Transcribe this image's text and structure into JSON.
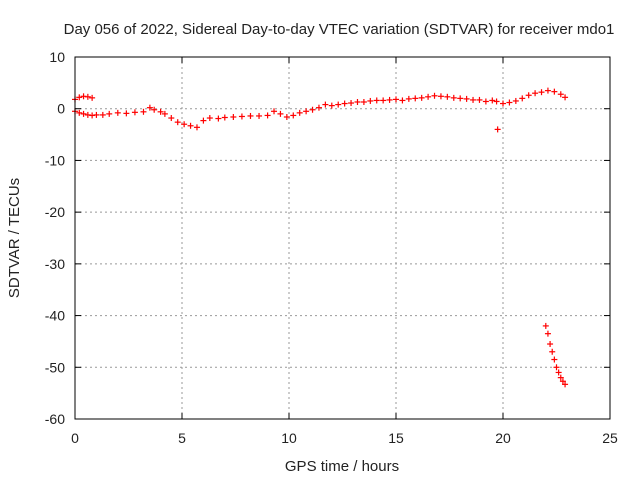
{
  "chart_data": {
    "type": "scatter",
    "title": "Day 056 of 2022, Sidereal Day-to-day VTEC variation (SDTVAR) for receiver mdo1",
    "xlabel": "GPS time / hours",
    "ylabel": "SDTVAR / TECUs",
    "xlim": [
      0,
      25
    ],
    "ylim": [
      -60,
      10
    ],
    "xticks": [
      0,
      5,
      10,
      15,
      20,
      25
    ],
    "yticks": [
      10,
      0,
      -10,
      -20,
      -30,
      -40,
      -50,
      -60
    ],
    "grid": true,
    "marker": "+",
    "color": "#ff0000",
    "series": [
      {
        "name": "mdo1",
        "x": [
          0.0,
          0.2,
          0.4,
          0.6,
          0.8,
          1.0,
          1.3,
          1.6,
          2.0,
          2.4,
          2.8,
          3.2,
          3.5,
          3.7,
          4.0,
          4.2,
          4.5,
          4.8,
          5.1,
          5.4,
          5.7,
          6.0,
          6.3,
          6.7,
          7.0,
          7.4,
          7.8,
          8.2,
          8.6,
          9.0,
          9.3,
          9.6,
          9.9,
          10.2,
          10.5,
          10.8,
          11.1,
          11.4,
          11.7,
          12.0,
          12.3,
          12.6,
          12.9,
          13.2,
          13.5,
          13.8,
          14.1,
          14.4,
          14.7,
          15.0,
          15.3,
          15.6,
          15.9,
          16.2,
          16.5,
          16.8,
          17.1,
          17.4,
          17.7,
          18.0,
          18.3,
          18.6,
          18.9,
          19.2,
          19.5,
          19.7,
          20.0,
          20.3,
          20.6,
          20.9,
          21.2,
          21.5,
          21.8,
          22.1,
          22.4,
          22.7,
          22.9,
          0.0,
          0.2,
          0.4,
          0.6,
          0.8,
          19.75,
          22.0,
          22.1,
          22.2,
          22.3,
          22.4,
          22.5,
          22.6,
          22.7,
          22.8,
          22.9
        ],
        "y": [
          -0.5,
          -0.8,
          -1.0,
          -1.2,
          -1.3,
          -1.2,
          -1.2,
          -1.0,
          -0.8,
          -0.9,
          -0.7,
          -0.6,
          0.2,
          -0.2,
          -0.6,
          -1.0,
          -1.8,
          -2.6,
          -3.0,
          -3.3,
          -3.6,
          -2.3,
          -1.8,
          -1.9,
          -1.7,
          -1.6,
          -1.5,
          -1.4,
          -1.4,
          -1.3,
          -0.5,
          -1.0,
          -1.6,
          -1.3,
          -0.8,
          -0.5,
          -0.2,
          0.2,
          0.8,
          0.6,
          0.8,
          1.0,
          1.1,
          1.3,
          1.3,
          1.5,
          1.6,
          1.6,
          1.7,
          1.8,
          1.6,
          1.9,
          2.0,
          2.1,
          2.3,
          2.5,
          2.4,
          2.3,
          2.1,
          2.0,
          1.9,
          1.7,
          1.7,
          1.4,
          1.6,
          1.4,
          1.0,
          1.2,
          1.5,
          2.0,
          2.6,
          3.0,
          3.2,
          3.5,
          3.3,
          2.8,
          2.2,
          1.8,
          2.2,
          2.4,
          2.3,
          2.1,
          -4.0,
          -42.0,
          -43.5,
          -45.5,
          -47.0,
          -48.5,
          -50.0,
          -51.0,
          -52.0,
          -52.7,
          -53.3
        ]
      }
    ]
  }
}
